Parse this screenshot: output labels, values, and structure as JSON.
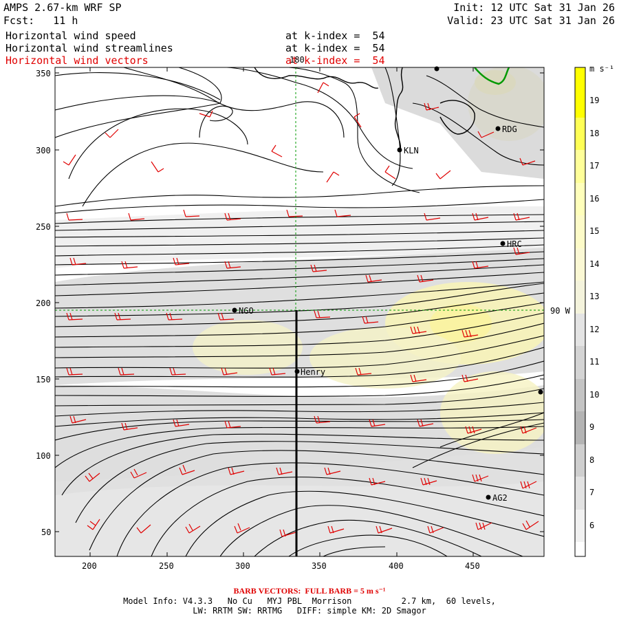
{
  "header": {
    "title": "AMPS 2.67-km WRF SP",
    "forecast": "Fcst:   11 h",
    "init": "Init: 12 UTC Sat 31 Jan 26",
    "valid": "Valid: 23 UTC Sat 31 Jan 26",
    "fields": [
      {
        "name": "Horizontal wind speed",
        "level": "at k-index =  54"
      },
      {
        "name": "Horizontal wind streamlines",
        "level": "at k-index =  54"
      },
      {
        "name": "Horizontal wind vectors",
        "level": "at k-index =  54"
      }
    ]
  },
  "axes": {
    "x_ticks": [
      "200",
      "250",
      "300",
      "350",
      "400",
      "450"
    ],
    "y_ticks": [
      "350",
      "300",
      "250",
      "200",
      "150",
      "100",
      "50"
    ],
    "meridian_label": "180",
    "parallel_label": "90 W"
  },
  "stations": [
    {
      "id": "RDG",
      "label": "RDG"
    },
    {
      "id": "KLN",
      "label": "KLN"
    },
    {
      "id": "HRC",
      "label": "HRC"
    },
    {
      "id": "NGO",
      "label": "NGO"
    },
    {
      "id": "Henry",
      "label": "Henry"
    },
    {
      "id": "AG2",
      "label": "AG2"
    }
  ],
  "colorbar": {
    "units": "m s⁻¹",
    "levels": [
      "19",
      "18",
      "17",
      "16",
      "15",
      "14",
      "13",
      "12",
      "11",
      "10",
      "9",
      "8",
      "7",
      "6"
    ],
    "colors": [
      "#ffff00",
      "#ffff55",
      "#ffff99",
      "#ffffbb",
      "#fdfbc8",
      "#fbf8d4",
      "#f4f3dc",
      "#e4e4e4",
      "#d4d4d4",
      "#c4c4c4",
      "#b4b4b4",
      "#cfcfcf",
      "#e2e2e2",
      "#f1f1f1",
      "#ffffff"
    ]
  },
  "footer": {
    "barb_note": "BARB VECTORS:  FULL BARB = 5 m s⁻¹",
    "model_info": "Model Info: V4.3.3   No Cu   MYJ PBL  Morrison          2.7 km,  60 levels,",
    "physics": "LW: RRTM SW: RRTMG   DIFF: simple KM: 2D Smagor"
  }
}
